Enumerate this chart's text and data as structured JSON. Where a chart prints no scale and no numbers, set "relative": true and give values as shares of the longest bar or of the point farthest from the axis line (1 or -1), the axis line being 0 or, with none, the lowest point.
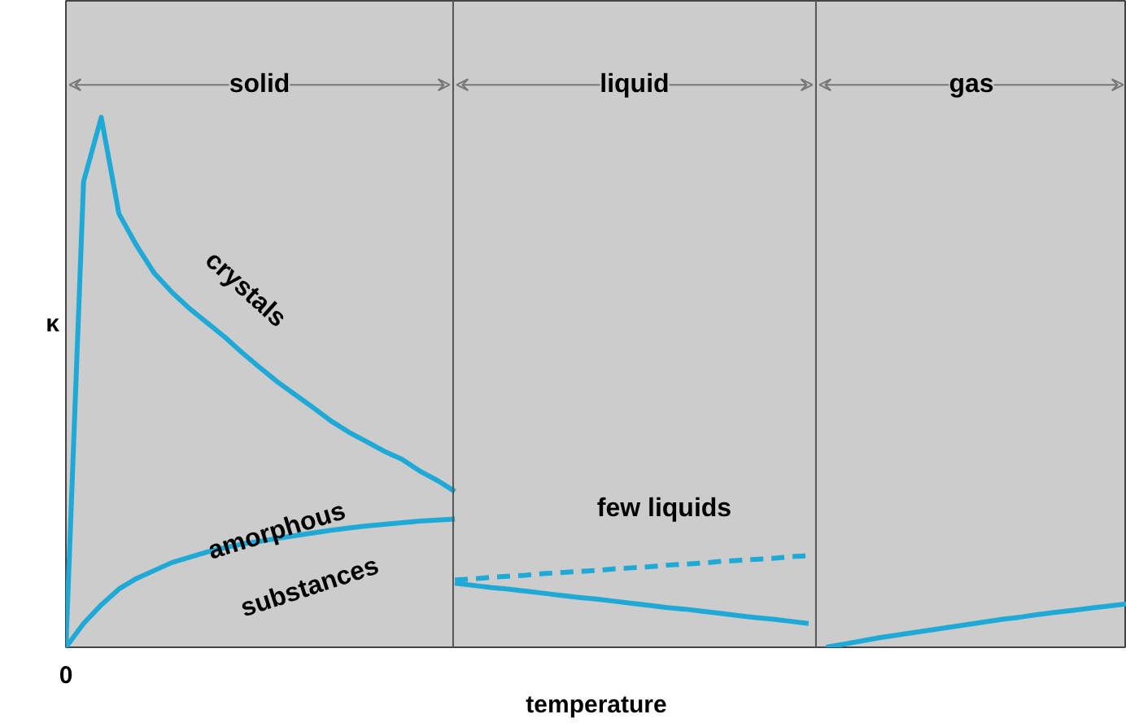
{
  "chart_data": {
    "type": "line",
    "relative": true,
    "xlabel": "temperature",
    "ylabel": "κ",
    "categories": [
      null,
      null,
      null,
      null,
      null,
      null,
      null,
      null,
      null,
      null,
      null,
      null,
      null,
      null,
      null,
      null,
      null,
      null,
      null,
      null,
      null,
      null,
      null,
      null,
      null,
      null,
      null,
      null,
      null,
      null,
      null,
      null,
      null,
      null,
      null,
      null,
      null,
      null,
      null,
      null,
      null,
      null,
      null,
      null,
      null,
      null,
      null,
      null,
      null,
      null,
      null,
      null,
      null,
      null,
      null,
      null,
      null,
      null,
      null,
      null,
      null
    ],
    "series": [
      {
        "color": "#1fa9d6",
        "line_style": "solid",
        "values": [
          0,
          0.879,
          1,
          0.818,
          0.758,
          0.706,
          0.67,
          0.639,
          0.612,
          0.585,
          0.555,
          0.527,
          0.5,
          0.476,
          0.452,
          0.427,
          0.406,
          0.388,
          0.37,
          0.355,
          0.333,
          0.315,
          0.294,
          null,
          null,
          null,
          null,
          null,
          null,
          null,
          null,
          null,
          null,
          null,
          null,
          null,
          null,
          null,
          null,
          null,
          null,
          null,
          null,
          null,
          null,
          null,
          null,
          null,
          null,
          null,
          null,
          null,
          null,
          null,
          null,
          null,
          null,
          null,
          null,
          null,
          null
        ]
      },
      {
        "color": "#1fa9d6",
        "line_style": "solid",
        "values": [
          0,
          0.045,
          0.08,
          0.11,
          0.13,
          0.145,
          0.16,
          0.17,
          0.18,
          0.188,
          0.195,
          0.2,
          0.206,
          0.211,
          0.216,
          0.221,
          0.225,
          0.229,
          0.232,
          0.235,
          0.238,
          0.24,
          0.242,
          null,
          null,
          null,
          null,
          null,
          null,
          null,
          null,
          null,
          null,
          null,
          null,
          null,
          null,
          null,
          null,
          null,
          null,
          null,
          null,
          null,
          null,
          null,
          null,
          null,
          null,
          null,
          null,
          null,
          null,
          null,
          null,
          null,
          null,
          null,
          null,
          null,
          null
        ]
      },
      {
        "color": "#1fa9d6",
        "line_style": "dashed",
        "values": [
          null,
          null,
          null,
          null,
          null,
          null,
          null,
          null,
          null,
          null,
          null,
          null,
          null,
          null,
          null,
          null,
          null,
          null,
          null,
          null,
          null,
          null,
          0.127,
          0.129,
          0.132,
          0.134,
          0.136,
          0.139,
          0.141,
          0.143,
          0.145,
          0.148,
          0.15,
          0.152,
          0.155,
          0.157,
          0.159,
          0.162,
          0.164,
          0.166,
          0.168,
          0.171,
          0.173,
          null,
          null,
          null,
          null,
          null,
          null,
          null,
          null,
          null,
          null,
          null,
          null,
          null,
          null,
          null,
          null,
          null,
          null
        ]
      },
      {
        "color": "#1fa9d6",
        "line_style": "solid",
        "values": [
          null,
          null,
          null,
          null,
          null,
          null,
          null,
          null,
          null,
          null,
          null,
          null,
          null,
          null,
          null,
          null,
          null,
          null,
          null,
          null,
          null,
          null,
          0.121,
          0.117,
          0.113,
          0.11,
          0.106,
          0.102,
          0.098,
          0.094,
          0.091,
          0.087,
          0.083,
          0.079,
          0.075,
          0.072,
          0.068,
          0.064,
          0.06,
          0.056,
          0.053,
          0.049,
          0.045,
          null,
          null,
          null,
          null,
          null,
          null,
          null,
          null,
          null,
          null,
          null,
          null,
          null,
          null,
          null,
          null,
          null,
          null
        ]
      },
      {
        "color": "#1fa9d6",
        "line_style": "solid",
        "values": [
          null,
          null,
          null,
          null,
          null,
          null,
          null,
          null,
          null,
          null,
          null,
          null,
          null,
          null,
          null,
          null,
          null,
          null,
          null,
          null,
          null,
          null,
          null,
          null,
          null,
          null,
          null,
          null,
          null,
          null,
          null,
          null,
          null,
          null,
          null,
          null,
          null,
          null,
          null,
          null,
          null,
          null,
          null,
          0,
          0.006,
          0.012,
          0.018,
          0.023,
          0.028,
          0.033,
          0.038,
          0.043,
          0.048,
          0.053,
          0.057,
          0.062,
          0.066,
          0.07,
          0.074,
          0.078,
          0.082
        ]
      }
    ],
    "annotations": [
      "solid",
      "liquid",
      "gas",
      "crystals",
      "amorphous",
      "substances",
      "few liquids",
      "0"
    ]
  }
}
